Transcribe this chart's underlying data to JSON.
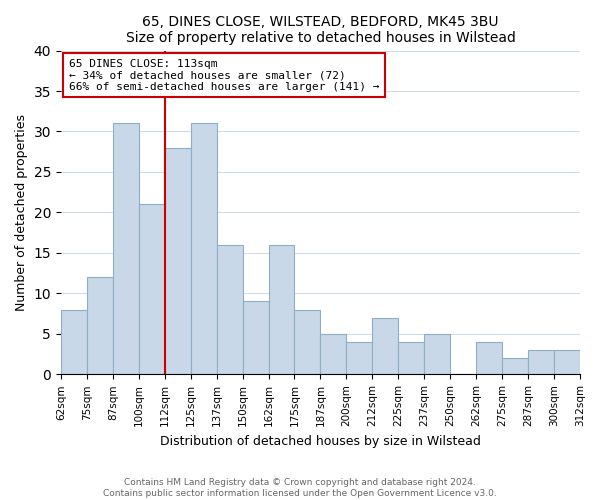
{
  "title": "65, DINES CLOSE, WILSTEAD, BEDFORD, MK45 3BU",
  "subtitle": "Size of property relative to detached houses in Wilstead",
  "xlabel": "Distribution of detached houses by size in Wilstead",
  "ylabel": "Number of detached properties",
  "footnote1": "Contains HM Land Registry data © Crown copyright and database right 2024.",
  "footnote2": "Contains public sector information licensed under the Open Government Licence v3.0.",
  "bin_labels": [
    "62sqm",
    "75sqm",
    "87sqm",
    "100sqm",
    "112sqm",
    "125sqm",
    "137sqm",
    "150sqm",
    "162sqm",
    "175sqm",
    "187sqm",
    "200sqm",
    "212sqm",
    "225sqm",
    "237sqm",
    "250sqm",
    "262sqm",
    "275sqm",
    "287sqm",
    "300sqm",
    "312sqm"
  ],
  "bar_values": [
    8,
    12,
    31,
    21,
    28,
    31,
    16,
    9,
    16,
    8,
    5,
    4,
    7,
    4,
    5,
    0,
    4,
    2,
    3,
    3
  ],
  "bar_color": "#c8d8e8",
  "bar_edge_color": "#90adc4",
  "grid_color": "#d0dce8",
  "vline_index": 4,
  "vline_color": "#cc0000",
  "annotation_line0": "65 DINES CLOSE: 113sqm",
  "annotation_line1": "← 34% of detached houses are smaller (72)",
  "annotation_line2": "66% of semi-detached houses are larger (141) →",
  "annotation_box_facecolor": "white",
  "annotation_box_edgecolor": "#cc0000",
  "ylim": [
    0,
    40
  ],
  "yticks": [
    0,
    5,
    10,
    15,
    20,
    25,
    30,
    35,
    40
  ]
}
